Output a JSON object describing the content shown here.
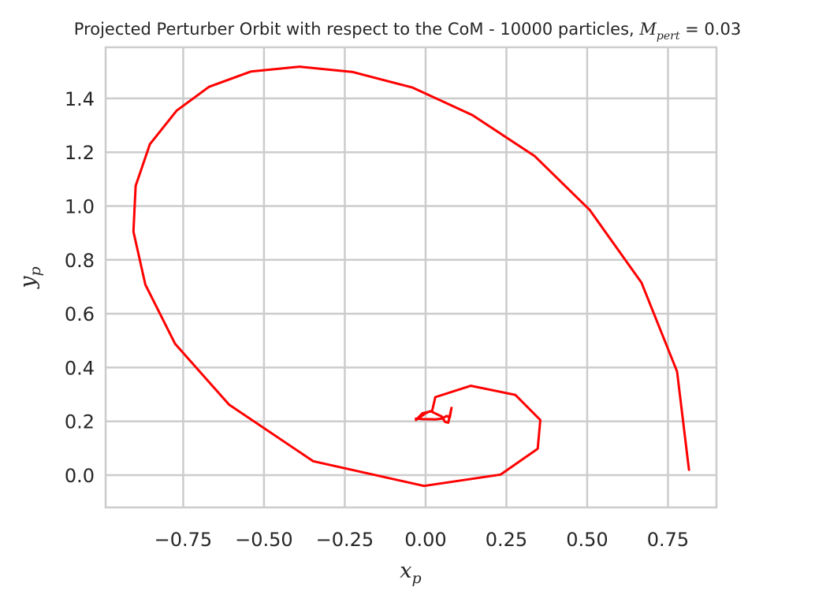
{
  "chart_data": {
    "type": "line",
    "title": {
      "main": "Projected Perturber Orbit with respect to the CoM - 10000 particles, ",
      "symbol": "M",
      "symbol_sub": "pert",
      "suffix": " = 0.03"
    },
    "xlabel": {
      "symbol": "x",
      "sub": "p"
    },
    "ylabel": {
      "symbol": "y",
      "sub": "p"
    },
    "xlim": [
      -0.99,
      0.9
    ],
    "ylim": [
      -0.12,
      1.59
    ],
    "xticks": [
      -0.75,
      -0.5,
      -0.25,
      0.0,
      0.25,
      0.5,
      0.75
    ],
    "xtick_labels": [
      "−0.75",
      "−0.50",
      "−0.25",
      "0.00",
      "0.25",
      "0.50",
      "0.75"
    ],
    "yticks": [
      0.0,
      0.2,
      0.4,
      0.6,
      0.8,
      1.0,
      1.2,
      1.4
    ],
    "ytick_labels": [
      "0.0",
      "0.2",
      "0.4",
      "0.6",
      "0.8",
      "1.0",
      "1.2",
      "1.4"
    ],
    "grid": true,
    "series": [
      {
        "color": "#ff0000",
        "x": [
          0.815,
          0.778,
          0.668,
          0.508,
          0.338,
          0.145,
          -0.04,
          -0.225,
          -0.39,
          -0.54,
          -0.67,
          -0.77,
          -0.853,
          -0.897,
          -0.904,
          -0.867,
          -0.775,
          -0.608,
          -0.348,
          -0.005,
          0.232,
          0.347,
          0.355,
          0.278,
          0.14,
          0.03,
          0.02,
          -0.01,
          -0.03,
          0.0,
          0.015,
          0.05,
          0.06,
          0.07,
          0.08,
          0.075,
          0.065,
          0.05,
          0.03,
          0.015,
          -0.005,
          -0.03
        ],
        "y": [
          0.02,
          0.385,
          0.715,
          0.985,
          1.185,
          1.338,
          1.44,
          1.498,
          1.518,
          1.5,
          1.443,
          1.355,
          1.23,
          1.075,
          0.905,
          0.708,
          0.488,
          0.262,
          0.052,
          -0.04,
          0.002,
          0.098,
          0.205,
          0.298,
          0.332,
          0.29,
          0.238,
          0.23,
          0.205,
          0.23,
          0.238,
          0.218,
          0.198,
          0.195,
          0.25,
          0.215,
          0.22,
          0.21,
          0.207,
          0.208,
          0.208,
          0.21
        ]
      }
    ]
  }
}
